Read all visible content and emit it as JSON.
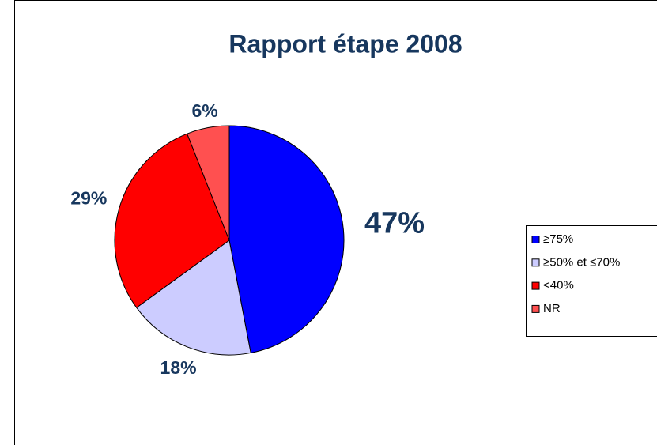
{
  "chart_data": {
    "type": "pie",
    "title": "Rapport étape 2008",
    "categories": [
      "≥75%",
      "≥50% et ≤70%",
      "<40%",
      "NR"
    ],
    "values": [
      47,
      18,
      29,
      6
    ],
    "value_labels": [
      "47%",
      "18%",
      "29%",
      "6%"
    ],
    "colors": [
      "#0000ff",
      "#ccccff",
      "#ff0000",
      "#ff5050"
    ],
    "legend": "right"
  }
}
